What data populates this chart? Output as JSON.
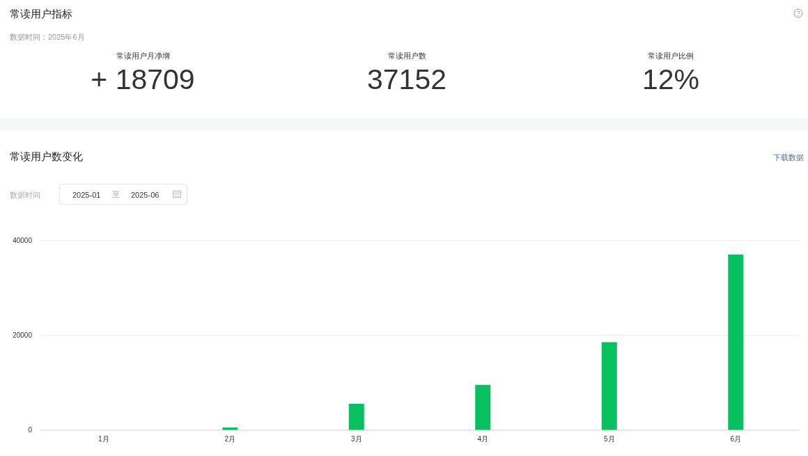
{
  "chart_data": [
    {
      "type": "other",
      "title": "常读用户指标",
      "subtitle": "数据时间：2025年6月",
      "categories": [
        "常读用户月净增",
        "常读用户数",
        "常读用户比例"
      ],
      "value_labels": [
        "+ 18709",
        "37152",
        "12%"
      ]
    },
    {
      "type": "bar",
      "title": "常读用户数变化",
      "annotations": [
        "数据时间",
        "2025-01",
        "至",
        "2025-06",
        "下载数据"
      ],
      "categories": [
        "1月",
        "2月",
        "3月",
        "4月",
        "5月",
        "6月"
      ],
      "values": [
        0,
        500,
        5500,
        9500,
        18500,
        37000
      ],
      "color": "#07c160",
      "ylim": [
        0,
        40000
      ],
      "yticks": [
        0,
        20000,
        40000
      ],
      "grid": "y"
    }
  ]
}
